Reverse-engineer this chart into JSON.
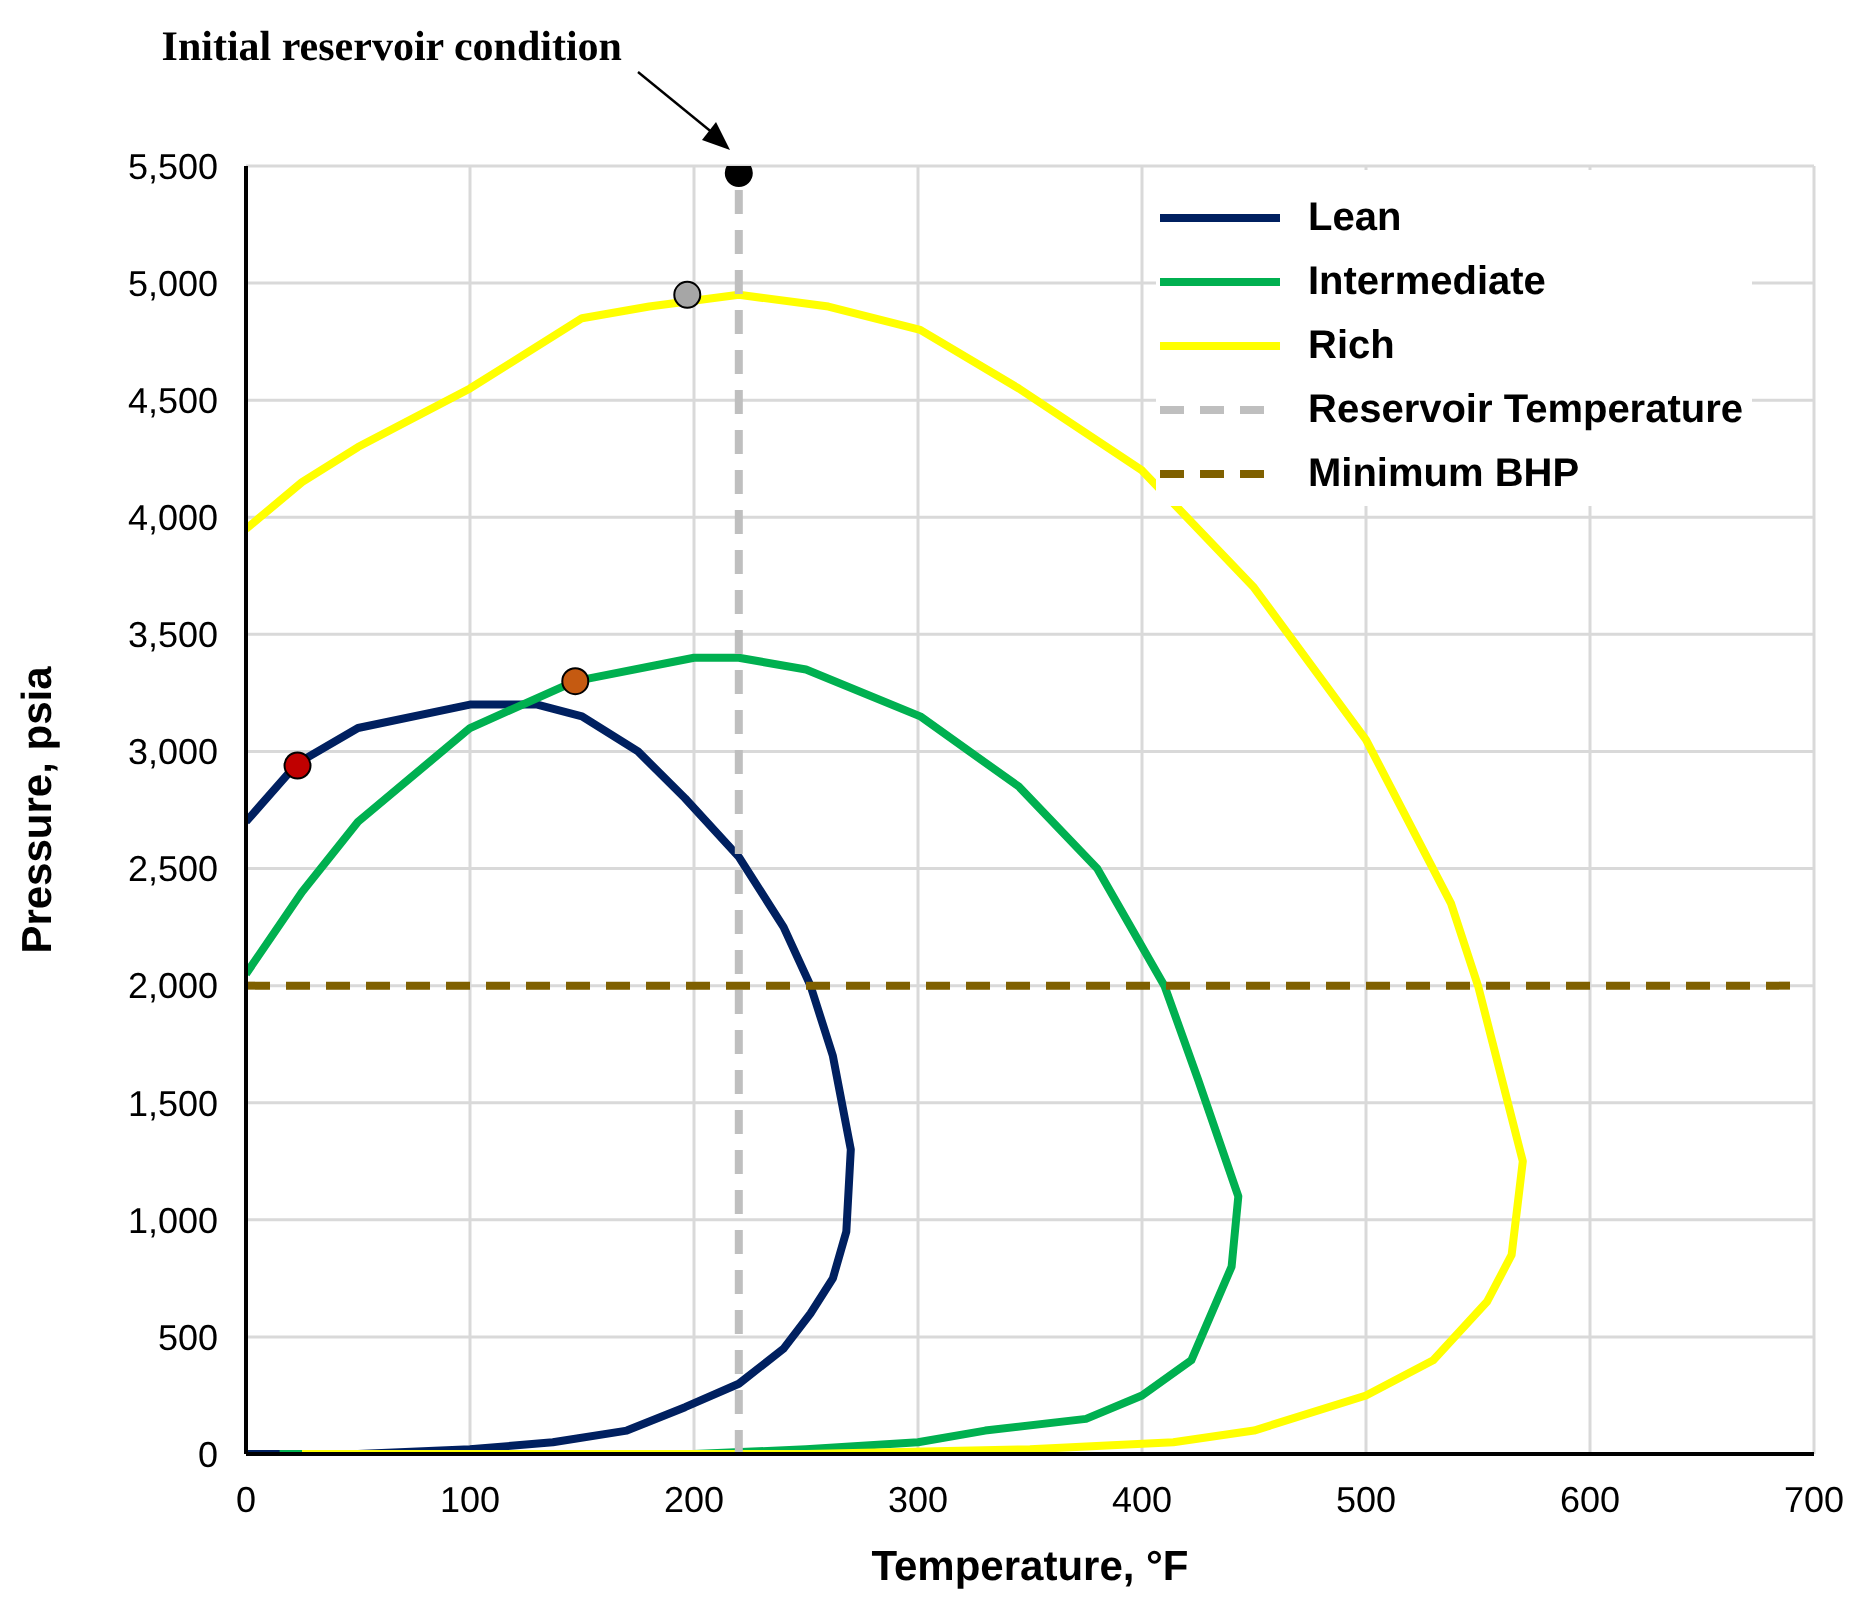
{
  "chart_data": {
    "type": "line",
    "xlabel": "Temperature, °F",
    "ylabel": "Pressure, psia",
    "xlim": [
      0,
      700
    ],
    "xticks": [
      0,
      100,
      200,
      300,
      400,
      500,
      600,
      700
    ],
    "ylim": [
      0,
      5500
    ],
    "yticks": [
      0,
      500,
      {
        "value": 1000,
        "label": "1,000"
      },
      {
        "value": 1500,
        "label": "1,500"
      },
      {
        "value": 2000,
        "label": "2,000"
      },
      {
        "value": 2500,
        "label": "2,500"
      },
      {
        "value": 3000,
        "label": "3,000"
      },
      {
        "value": 3500,
        "label": "3,500"
      },
      {
        "value": 4000,
        "label": "4,000"
      },
      {
        "value": 4500,
        "label": "4,500"
      },
      {
        "value": 5000,
        "label": "5,000"
      },
      {
        "value": 5500,
        "label": "5,500"
      }
    ],
    "grid": true,
    "legend": "top right",
    "annotations": [
      "Initial reservoir condition"
    ],
    "series": [
      {
        "name": "Lean",
        "color": "#002060",
        "line_style": "solid",
        "x": [
          0,
          23,
          50,
          100,
          130,
          150,
          175,
          196,
          220,
          240,
          252,
          262,
          270,
          268,
          262,
          252,
          240,
          220,
          196,
          170,
          137,
          100,
          50,
          0
        ],
        "values": [
          2700,
          2950,
          3100,
          3200,
          3200,
          3150,
          3000,
          2800,
          2550,
          2250,
          2000,
          1700,
          1300,
          950,
          750,
          600,
          450,
          300,
          200,
          100,
          50,
          20,
          0,
          0
        ]
      },
      {
        "name": "Intermediate",
        "color": "#00b050",
        "line_style": "solid",
        "x": [
          0,
          25,
          50,
          100,
          147,
          200,
          220,
          250,
          301,
          345,
          380,
          410,
          425,
          443,
          440,
          422,
          400,
          375,
          330,
          300,
          250,
          200,
          100,
          15
        ],
        "values": [
          2050,
          2400,
          2700,
          3100,
          3300,
          3400,
          3400,
          3350,
          3150,
          2850,
          2500,
          2000,
          1600,
          1100,
          800,
          400,
          250,
          150,
          100,
          50,
          20,
          0,
          0,
          0
        ]
      },
      {
        "name": "Rich",
        "color": "#ffff00",
        "line_style": "solid",
        "x": [
          0,
          25,
          50,
          100,
          150,
          180,
          220,
          260,
          301,
          345,
          400,
          450,
          500,
          538,
          550,
          570,
          565,
          554,
          530,
          500,
          450,
          414,
          350,
          250,
          25
        ],
        "values": [
          3950,
          4150,
          4300,
          4550,
          4850,
          4900,
          4950,
          4900,
          4800,
          4550,
          4200,
          3700,
          3050,
          2350,
          2000,
          1250,
          850,
          650,
          400,
          250,
          100,
          50,
          20,
          0,
          0
        ]
      },
      {
        "name": "Reservoir Temperature",
        "color": "#bfbfbf",
        "line_style": "dashed",
        "x": [
          220,
          220
        ],
        "values": [
          0,
          5450
        ]
      },
      {
        "name": "Minimum BHP",
        "color": "#7f6000",
        "line_style": "dashed",
        "x": [
          0,
          690
        ],
        "values": [
          2000,
          2000
        ]
      },
      {
        "type": "scatter",
        "marker": "circle",
        "color": "#c00000",
        "x": [
          23
        ],
        "values": [
          2940
        ]
      },
      {
        "type": "scatter",
        "marker": "circle",
        "color": "#c55a11",
        "x": [
          147
        ],
        "values": [
          3300
        ]
      },
      {
        "type": "scatter",
        "marker": "circle",
        "color": "#a6a6a6",
        "x": [
          197
        ],
        "values": [
          4950
        ]
      },
      {
        "type": "scatter",
        "marker": "circle",
        "color": "#000000",
        "x": [
          220
        ],
        "values": [
          5470
        ]
      }
    ]
  }
}
